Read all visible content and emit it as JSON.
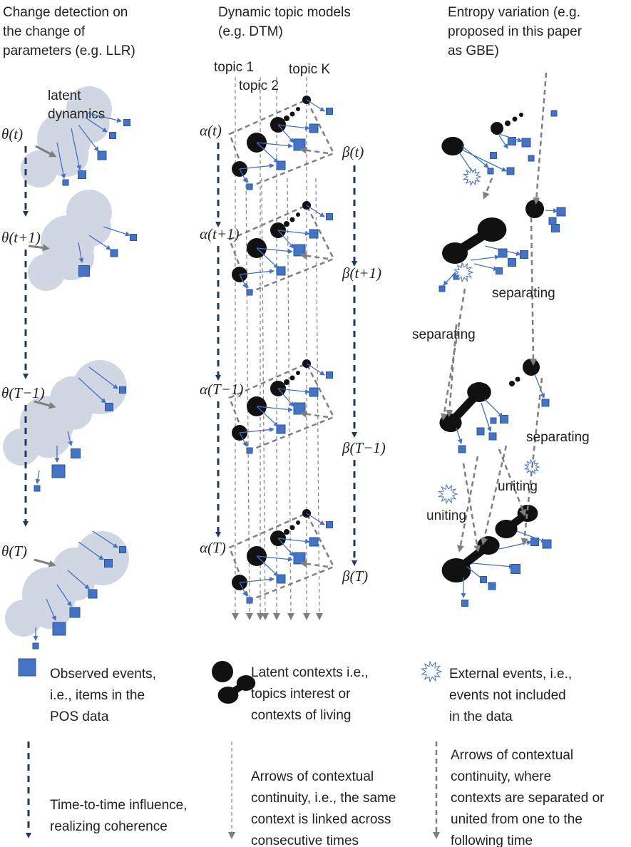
{
  "left": {
    "title": [
      "Change detection on",
      "the change of",
      "parameters  (e.g. LLR)"
    ],
    "cloud_label": [
      "latent",
      "dynamics"
    ],
    "params": [
      "θ(t)",
      "θ(t+1)",
      "θ(T−1)",
      "θ(T)"
    ]
  },
  "middle": {
    "title": [
      "Dynamic topic models",
      "(e.g. DTM)"
    ],
    "topics": [
      "topic 1",
      "topic 2",
      "topic K"
    ],
    "alpha": [
      "α(t)",
      "α(t+1)",
      "α(T−1)",
      "α(T)"
    ],
    "beta": [
      "β(t)",
      "β(t+1)",
      "β(T−1)",
      "β(T)"
    ]
  },
  "right": {
    "title": [
      "Entropy variation (e.g.",
      "proposed in this paper",
      "as GBE)"
    ],
    "annotations": [
      "separating",
      "separating",
      "separating",
      "uniting",
      "uniting"
    ]
  },
  "legend": [
    [
      "Observed events,",
      "i.e., items in the",
      "POS data"
    ],
    [
      "Latent contexts i.e.,",
      "topics interest or",
      "contexts of living"
    ],
    [
      "External events, i.e.,",
      "events not included",
      "in the data"
    ],
    [
      "Time-to-time influence,",
      "realizing coherence"
    ],
    [
      "Arrows of contextual",
      "continuity, i.e., the same",
      "context is linked across",
      "consecutive times"
    ],
    [
      "Arrows of contextual",
      "continuity, where",
      "contexts are separated or",
      "united from one to the",
      "following time"
    ]
  ]
}
